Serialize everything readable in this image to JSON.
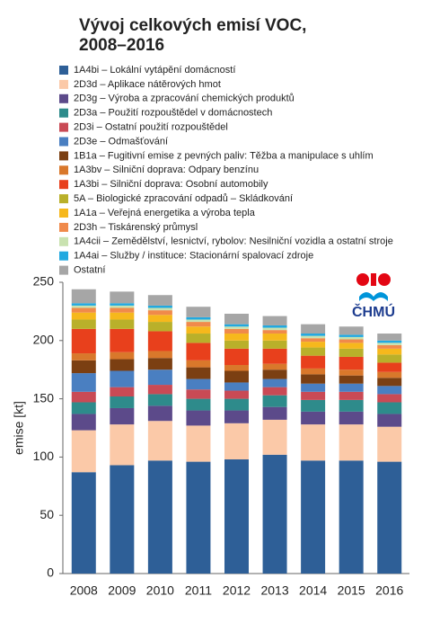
{
  "chart_data": {
    "type": "stacked-bar",
    "title": "Vývoj celkových emisí VOC, 2008–2016",
    "y_label": "emise [kt]",
    "logo_text": "ČHMÚ",
    "categories": [
      "2008",
      "2009",
      "2010",
      "2011",
      "2012",
      "2013",
      "2014",
      "2015",
      "2016"
    ],
    "ylim": [
      0,
      250
    ],
    "yticks": [
      0,
      50,
      100,
      150,
      200,
      250
    ],
    "series": [
      {
        "name": "1A4bi – Lokální vytápění domácností",
        "color": "#2e5f97",
        "values": [
          87,
          93,
          97,
          96,
          98,
          102,
          97,
          97,
          96
        ]
      },
      {
        "name": "2D3d – Aplikace nátěrových hmot",
        "color": "#fbc9a8",
        "values": [
          36,
          35,
          34,
          31,
          31,
          30,
          31,
          31,
          30
        ]
      },
      {
        "name": "2D3g – Výroba a zpracování chemických produktů",
        "color": "#5c4a8a",
        "values": [
          14,
          14,
          13,
          13,
          11,
          11,
          11,
          11,
          11
        ]
      },
      {
        "name": "2D3a – Použití rozpouštědel v domácnostech",
        "color": "#2e8b8b",
        "values": [
          10,
          10,
          10,
          10,
          10,
          10,
          10,
          10,
          10
        ]
      },
      {
        "name": "2D3i – Ostatní použití rozpouštědel",
        "color": "#c94a55",
        "values": [
          9,
          8,
          8,
          8,
          7,
          7,
          7,
          7,
          7
        ]
      },
      {
        "name": "2D3e – Odmašťování",
        "color": "#4a7fc1",
        "values": [
          16,
          14,
          13,
          9,
          7,
          7,
          7,
          7,
          7
        ]
      },
      {
        "name": "1B1a – Fugitivní emise z pevných paliv: Těžba a manipulace s uhlím",
        "color": "#7b3f12",
        "values": [
          11,
          10,
          10,
          10,
          10,
          8,
          8,
          7,
          7
        ]
      },
      {
        "name": "1A3bv – Silniční doprava: Odpary benzínu",
        "color": "#d9782b",
        "values": [
          6,
          6,
          6,
          6,
          5,
          5,
          5,
          5,
          5
        ]
      },
      {
        "name": "1A3bi – Silniční doprava: Osobní automobily",
        "color": "#e8401c",
        "values": [
          21,
          20,
          17,
          15,
          14,
          13,
          11,
          11,
          8
        ]
      },
      {
        "name": "5A – Biologické zpracování odpadů – Skládkování",
        "color": "#b9b02a",
        "values": [
          8,
          8,
          8,
          8,
          7,
          7,
          7,
          7,
          7
        ]
      },
      {
        "name": "1A1a – Veřejná energetika a výroba tepla",
        "color": "#f6b81c",
        "values": [
          6,
          6,
          6,
          6,
          6,
          6,
          5,
          5,
          5
        ]
      },
      {
        "name": "2D3h – Tiskárenský průmysl",
        "color": "#f08a4b",
        "values": [
          4,
          4,
          4,
          4,
          4,
          3,
          3,
          3,
          3
        ]
      },
      {
        "name": "1A4cii – Zemědělství, lesnictví, rybolov: Nesilniční vozidla a ostatní stroje",
        "color": "#c9e2b0",
        "values": [
          2,
          2,
          2,
          2,
          2,
          2,
          2,
          2,
          2
        ]
      },
      {
        "name": "1A4ai – Služby / instituce: Stacionární spalovací zdroje",
        "color": "#22a9e0",
        "values": [
          2,
          2,
          2,
          2,
          2,
          2,
          2,
          2,
          2
        ]
      },
      {
        "name": "Ostatní",
        "color": "#a6a6a6",
        "values": [
          12,
          10,
          9,
          9,
          9,
          8,
          8,
          7,
          6
        ]
      }
    ]
  }
}
